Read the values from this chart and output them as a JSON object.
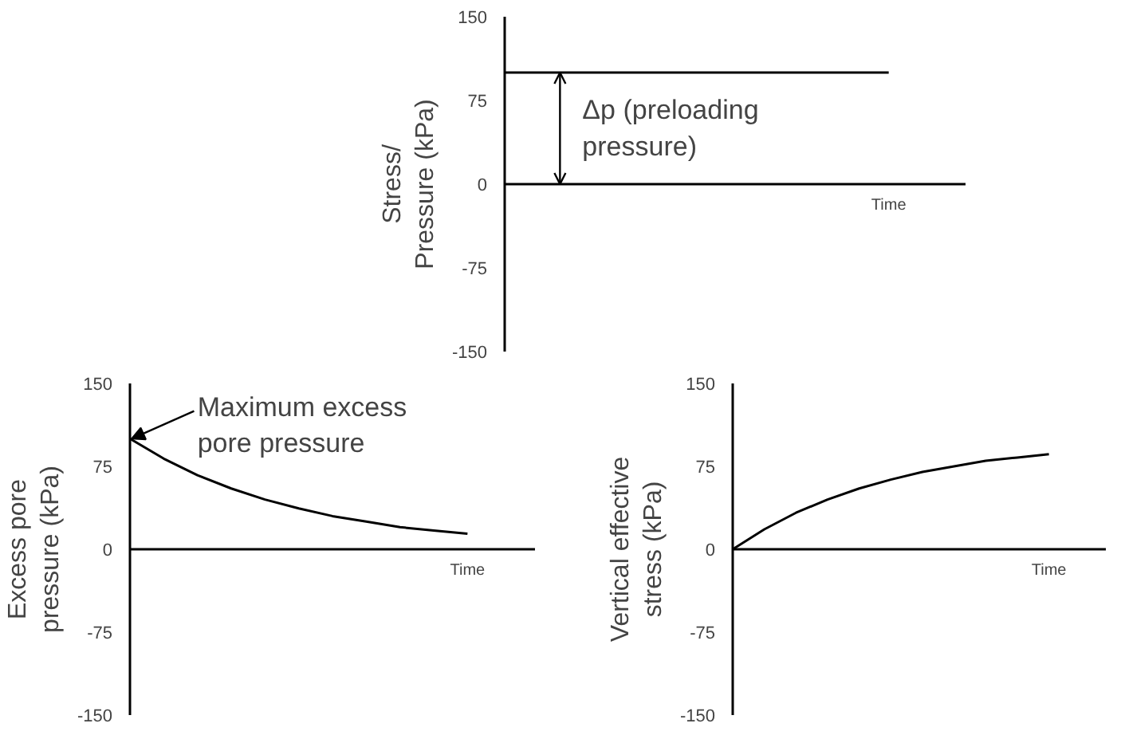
{
  "chart_data": [
    {
      "type": "line",
      "ylabel": "Stress/ Pressure (kPa)",
      "xlabel": "Time",
      "categories": [
        null,
        null,
        null,
        null,
        null,
        null,
        null,
        null,
        null,
        null,
        null
      ],
      "series": [
        {
          "color": "#000000",
          "values": [
            100,
            100,
            100,
            100,
            100,
            100,
            100,
            100,
            100,
            100,
            100
          ]
        }
      ],
      "ylim": [
        -150,
        150
      ],
      "yticks": [
        -150,
        -75,
        0,
        75,
        150
      ],
      "tick_labels": "y",
      "annotations": [
        "Δp (preloading pressure)"
      ]
    },
    {
      "type": "line",
      "ylabel": "Excess pore pressure (kPa)",
      "xlabel": "Time",
      "categories": [
        null,
        null,
        null,
        null,
        null,
        null,
        null,
        null,
        null,
        null,
        null
      ],
      "series": [
        {
          "color": "#000000",
          "values": [
            100,
            82,
            67,
            55,
            45,
            37,
            30,
            25,
            20,
            17,
            14
          ]
        }
      ],
      "ylim": [
        -150,
        150
      ],
      "yticks": [
        -150,
        -75,
        0,
        75,
        150
      ],
      "tick_labels": "y",
      "annotations": [
        "Maximum excess pore pressure"
      ]
    },
    {
      "type": "line",
      "ylabel": "Vertical effective stress (kPa)",
      "xlabel": "Time",
      "categories": [
        null,
        null,
        null,
        null,
        null,
        null,
        null,
        null,
        null,
        null,
        null
      ],
      "series": [
        {
          "color": "#000000",
          "values": [
            0,
            18,
            33,
            45,
            55,
            63,
            70,
            75,
            80,
            83,
            86
          ]
        }
      ],
      "ylim": [
        -150,
        150
      ],
      "yticks": [
        -150,
        -75,
        0,
        75,
        150
      ],
      "tick_labels": "y"
    }
  ]
}
